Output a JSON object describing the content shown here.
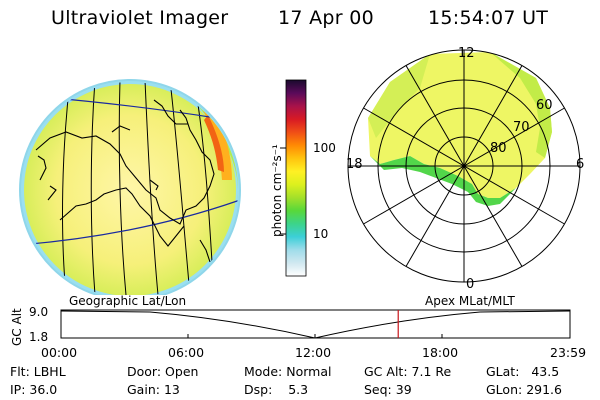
{
  "header": {
    "title": "Ultraviolet Imager",
    "date": "17 Apr 00",
    "time": "15:54:07 UT"
  },
  "colorbar": {
    "unit_label": "photon cm⁻²s⁻¹",
    "tick_100": "100",
    "tick_10": "10",
    "colors": [
      "#ffffff",
      "#d0e8f0",
      "#9fdcea",
      "#3ccfd8",
      "#3cd48a",
      "#58d83a",
      "#a4e02a",
      "#dcf01e",
      "#fff024",
      "#ffc40e",
      "#ff8a04",
      "#f04e16",
      "#d81a24",
      "#a8124a",
      "#5a0a5a",
      "#1a0a2e"
    ]
  },
  "polar_plot": {
    "mlt_labels": {
      "top": "12",
      "left": "18",
      "right": "6",
      "bottom": "0"
    },
    "lat_labels": [
      "60",
      "70",
      "80"
    ]
  },
  "timeline": {
    "left_title": "Geographic Lat/Lon",
    "right_title": "Apex MLat/MLT",
    "axis_label": "GC Alt",
    "y_top": "9.0",
    "y_bottom": "1.8",
    "time_ticks": [
      "00:00",
      "06:00",
      "12:00",
      "18:00",
      "23:59"
    ],
    "marker_time_hours": 15.9
  },
  "info": {
    "flt_label": "Flt:",
    "flt_value": "LBHL",
    "ip_label": "IP:",
    "ip_value": "36.0",
    "door_label": "Door:",
    "door_value": "Open",
    "gain_label": "Gain:",
    "gain_value": "13",
    "mode_label": "Mode:",
    "mode_value": "Normal",
    "dsp_label": "Dsp:",
    "dsp_value": "5.3",
    "gcalt_label": "GC Alt:",
    "gcalt_value": "7.1 Re",
    "seq_label": "Seq:",
    "seq_value": "39",
    "glat_label": "GLat:",
    "glat_value": "43.5",
    "glon_label": "GLon:",
    "glon_value": "291.6"
  }
}
